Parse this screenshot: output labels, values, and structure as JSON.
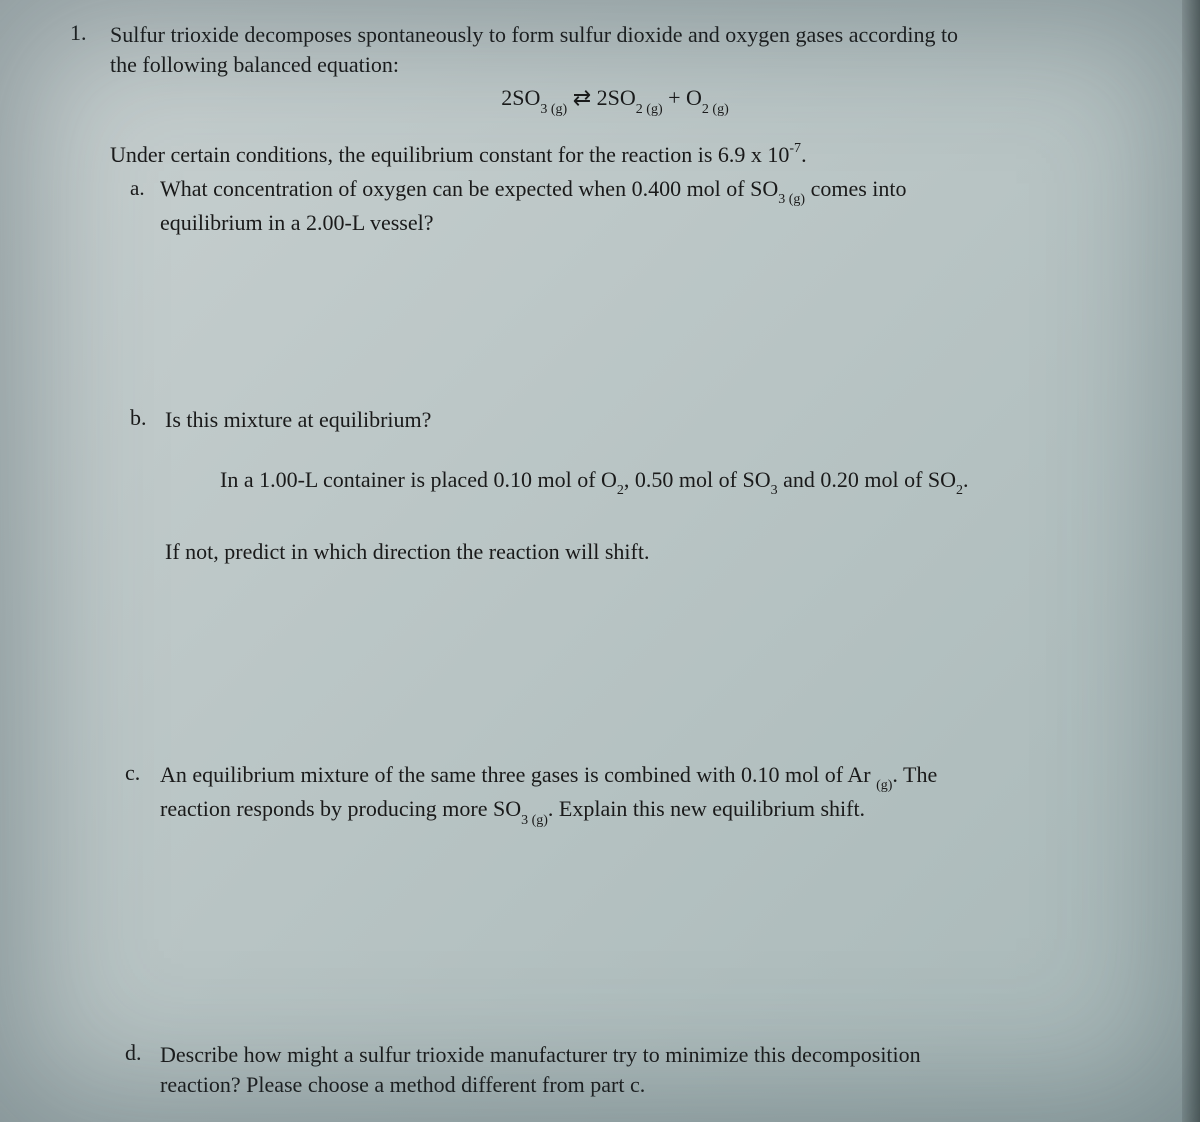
{
  "question1": {
    "number": "1.",
    "intro_line1": "Sulfur trioxide decomposes spontaneously to form sulfur dioxide and oxygen gases according to",
    "intro_line2": "the following balanced equation:",
    "equation_lhs": "2SO",
    "equation_lhs_sub": "3 (g)",
    "equation_arrow": " ⇄ ",
    "equation_mid": "2SO",
    "equation_mid_sub": "2 (g)",
    "equation_plus": " + O",
    "equation_rhs_sub": "2 (g)",
    "under_line1_a": "Under certain conditions, the equilibrium constant for the reaction is 6.9 x 10",
    "under_line1_sup": "-7",
    "under_line1_b": ".",
    "part_a": {
      "label": "a.",
      "text_a": "What concentration of oxygen can be expected when 0.400 mol of SO",
      "text_sub": "3 (g)",
      "text_b": " comes into",
      "line2": "equilibrium in a 2.00-L vessel?"
    },
    "part_b": {
      "label": "b.",
      "text": "Is this mixture at equilibrium?",
      "inner_a": "In a 1.00-L container is placed 0.10 mol of O",
      "inner_sub1": "2",
      "inner_b": ", 0.50 mol of SO",
      "inner_sub2": "3",
      "inner_c": " and 0.20 mol of SO",
      "inner_sub3": "2",
      "inner_d": ".",
      "ifnot": "If not, predict in which direction the reaction will shift."
    },
    "part_c": {
      "label": "c.",
      "line1_a": "An equilibrium mixture of the same three gases is combined with 0.10 mol of Ar ",
      "line1_sub": "(g)",
      "line1_b": ". The",
      "line2_a": "reaction responds by producing more SO",
      "line2_sub": "3 (g)",
      "line2_b": ". Explain this new equilibrium shift."
    },
    "part_d": {
      "label": "d.",
      "line1": "Describe how might a sulfur trioxide manufacturer try to minimize this decomposition",
      "line2": "reaction? Please choose a method different from part c."
    }
  }
}
